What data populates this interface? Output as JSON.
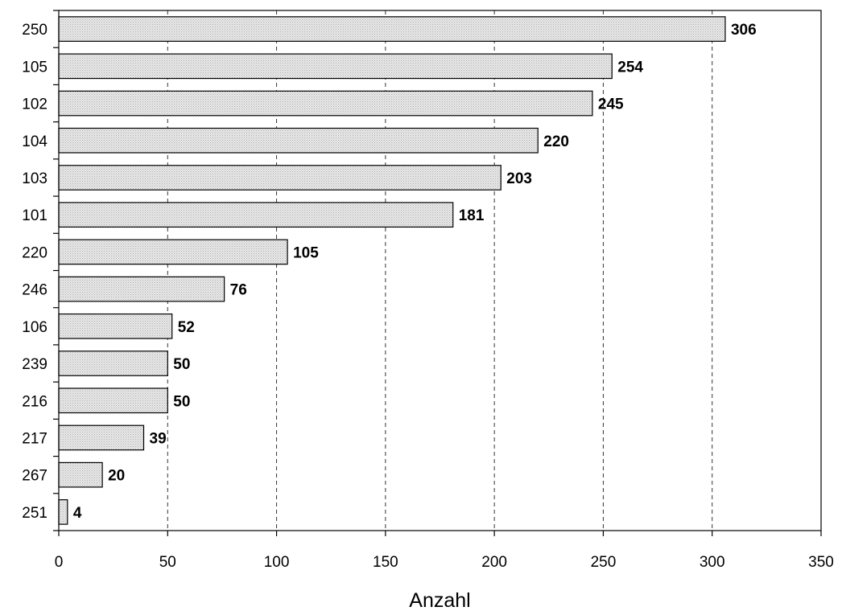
{
  "chart_data": {
    "type": "bar",
    "orientation": "horizontal",
    "title": "",
    "xlabel": "Anzahl",
    "ylabel": "",
    "categories": [
      "250",
      "105",
      "102",
      "104",
      "103",
      "101",
      "220",
      "246",
      "106",
      "239",
      "216",
      "217",
      "267",
      "251"
    ],
    "values": [
      306,
      254,
      245,
      220,
      203,
      181,
      105,
      76,
      52,
      50,
      50,
      39,
      20,
      4
    ],
    "xlim": [
      0,
      350
    ],
    "xticks": [
      0,
      50,
      100,
      150,
      200,
      250,
      300,
      350
    ],
    "grid": "vertical-dashed",
    "legend": "none",
    "bar_color": "#dcdcdc"
  }
}
